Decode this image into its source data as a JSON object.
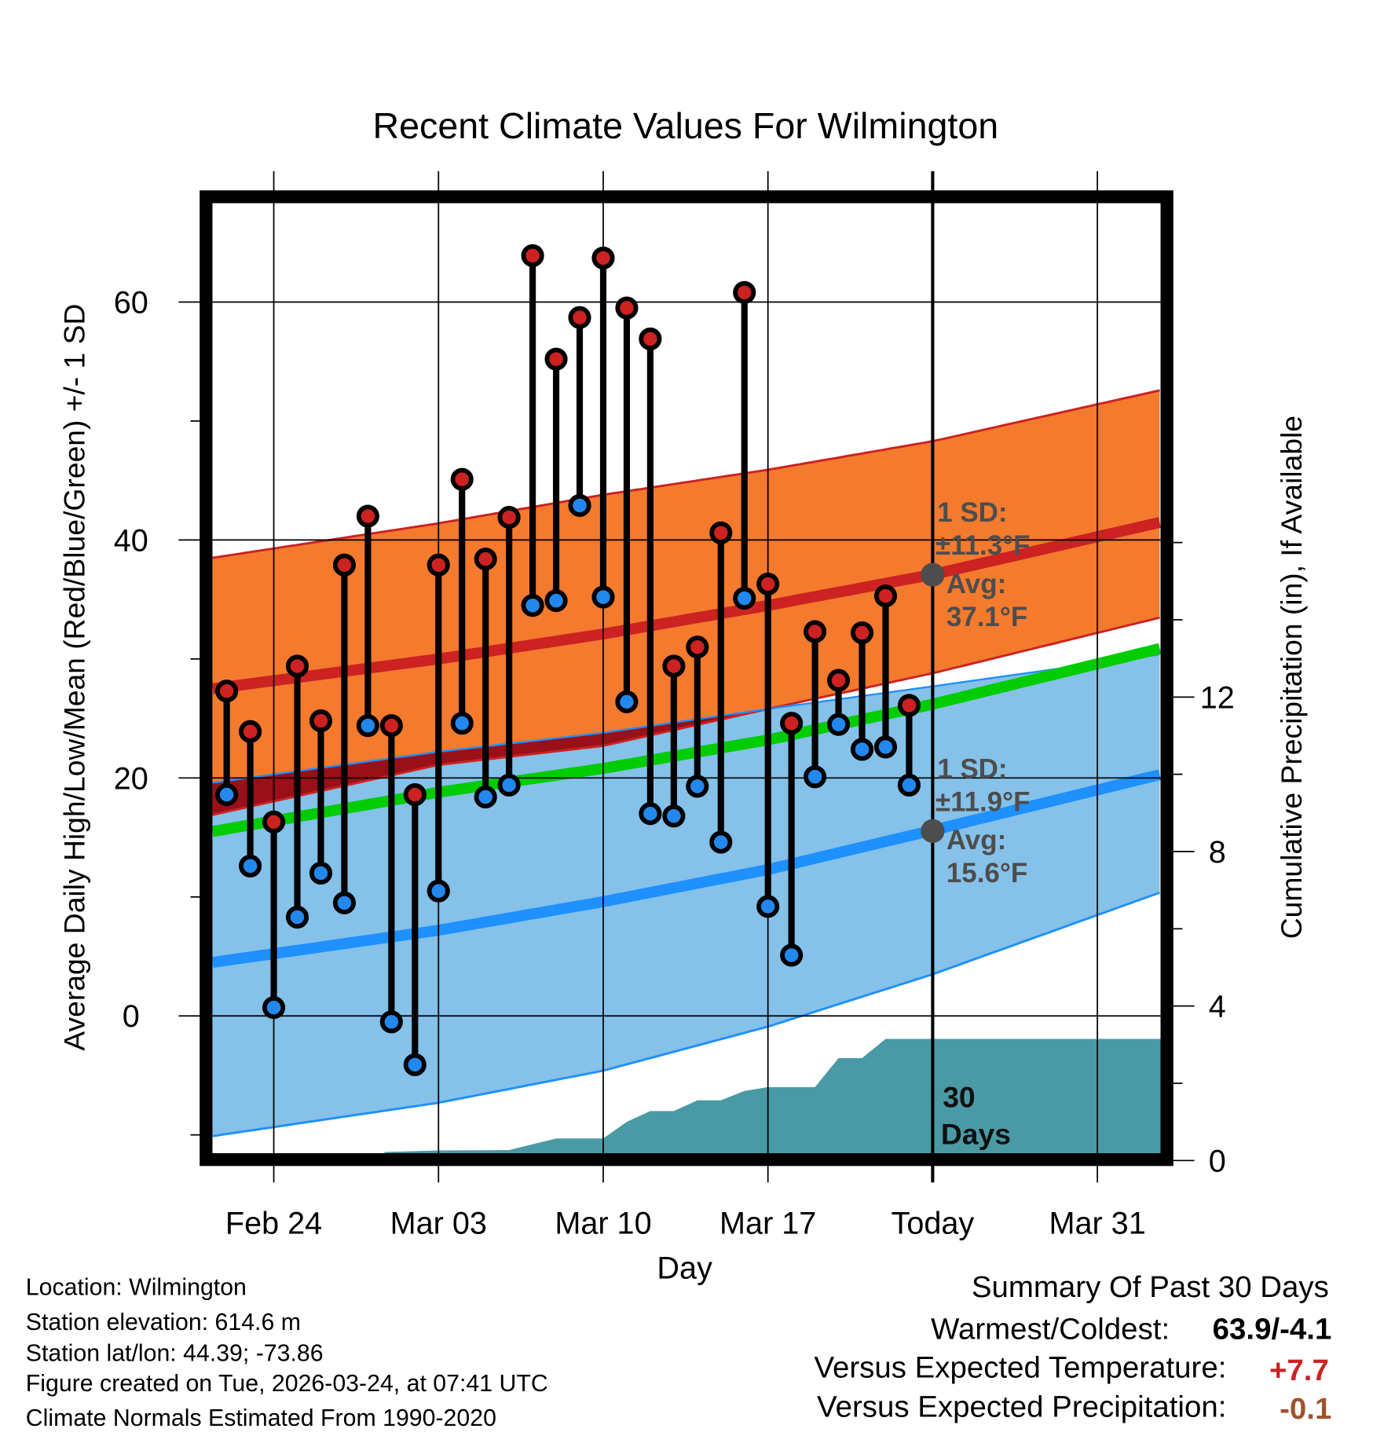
{
  "chart_data": {
    "type": "line",
    "title": "Recent Climate Values For Wilmington",
    "xlabel": "Day",
    "ylabel": "Average Daily High/Low/Mean (Red/Blue/Green) +/- 1 SD",
    "y2label": "Cumulative Precipitation (in), If Available",
    "ylim": [
      -11.5,
      68.3
    ],
    "y2lim": [
      0,
      18.9
    ],
    "grid": true,
    "x_origin": "Feb 24",
    "xlim_days": [
      -2.6,
      37.7
    ],
    "x_ticks": [
      {
        "day": 0,
        "label": "Feb 24"
      },
      {
        "day": 7,
        "label": "Mar 03"
      },
      {
        "day": 14,
        "label": "Mar 10"
      },
      {
        "day": 21,
        "label": "Mar 17"
      },
      {
        "day": 28,
        "label": "Today"
      },
      {
        "day": 35,
        "label": "Mar 31"
      }
    ],
    "y_ticks": [
      "0",
      "20",
      "40",
      "60"
    ],
    "y2_ticks": [
      "0",
      "4",
      "8",
      "12"
    ],
    "observed": {
      "days": [
        -2,
        -1,
        0,
        1,
        2,
        3,
        4,
        5,
        6,
        7,
        8,
        9,
        10,
        11,
        12,
        13,
        14,
        15,
        16,
        17,
        18,
        19,
        20,
        21,
        22,
        23,
        24,
        25,
        26,
        27
      ],
      "high": [
        27.3,
        23.9,
        16.3,
        29.4,
        24.8,
        37.9,
        42.0,
        24.4,
        18.6,
        37.9,
        45.1,
        38.4,
        41.9,
        63.9,
        55.2,
        58.7,
        63.7,
        59.5,
        56.9,
        29.4,
        31.0,
        40.6,
        60.8,
        36.3,
        24.6,
        32.3,
        28.2,
        32.2,
        35.3,
        26.1
      ],
      "low": [
        18.6,
        12.6,
        0.7,
        8.3,
        12.0,
        9.5,
        24.4,
        -0.5,
        -4.1,
        10.5,
        24.6,
        18.4,
        19.4,
        34.5,
        34.9,
        42.9,
        35.2,
        26.4,
        17.0,
        16.8,
        19.3,
        14.6,
        35.1,
        9.2,
        5.1,
        20.1,
        24.5,
        22.4,
        22.6,
        19.4
      ]
    },
    "normals": {
      "days": [
        -2.6,
        7,
        14,
        21,
        28,
        37.7
      ],
      "high_plus_sd": [
        38.5,
        41.4,
        43.8,
        45.9,
        48.3,
        52.6
      ],
      "avg_high": [
        27.5,
        30.0,
        32.1,
        34.5,
        37.1,
        41.5
      ],
      "high_minus_sd": [
        16.9,
        21.1,
        22.7,
        25.8,
        28.8,
        33.5
      ],
      "low_plus_sd": [
        19.6,
        22.2,
        23.8,
        25.8,
        27.7,
        30.4
      ],
      "mean": [
        15.5,
        18.8,
        20.8,
        23.2,
        26.2,
        30.9
      ],
      "avg_low": [
        4.5,
        7.2,
        9.6,
        12.3,
        15.6,
        20.3
      ],
      "low_minus_sd": [
        -10.1,
        -7.3,
        -4.6,
        -0.9,
        3.5,
        10.4
      ]
    },
    "precip_cumulative": {
      "days": [
        4.7,
        7,
        10,
        12,
        14,
        15,
        16,
        17,
        18,
        19,
        20,
        21,
        23,
        24,
        25,
        26,
        37.7
      ],
      "inches": [
        0.22,
        0.26,
        0.27,
        0.57,
        0.57,
        1.0,
        1.28,
        1.28,
        1.56,
        1.56,
        1.8,
        1.9,
        1.9,
        2.65,
        2.65,
        3.15,
        3.15
      ]
    },
    "annotations": {
      "high_sd_label": "1 SD:",
      "high_sd_value": "±11.3°F",
      "high_avg_label": "Avg:",
      "high_avg_value": "37.1°F",
      "low_sd_label": "1 SD:",
      "low_sd_value": "±11.9°F",
      "low_avg_label": "Avg:",
      "low_avg_value": "15.6°F",
      "days_label_1": "30",
      "days_label_2": "Days"
    },
    "colors": {
      "high_band": "#f47a2e",
      "low_band": "#85c1e8",
      "overlap": "#9a1018",
      "high_line": "#cc2222",
      "low_line": "#1e90ff",
      "mean_line": "#00cc00",
      "precip": "#4a9aa5",
      "high_point": "#cc2222",
      "low_point": "#2288ee",
      "annotation": "#4d4d4d"
    }
  },
  "info": {
    "location": "Location: Wilmington",
    "elevation": "Station elevation: 614.6 m",
    "latlon": "Station lat/lon: 44.39; -73.86",
    "created": "Figure created on Tue, 2026-03-24, at 07:41 UTC",
    "normals": "Climate Normals Estimated From 1990-2020"
  },
  "summary": {
    "title": "Summary Of Past 30 Days",
    "warm_cold_label": "Warmest/Coldest:",
    "warm_cold_value": "63.9/-4.1",
    "temp_label": "Versus Expected Temperature:",
    "temp_value": "+7.7",
    "temp_color": "#cc2222",
    "precip_label": "Versus Expected Precipitation:",
    "precip_value": "-0.1",
    "precip_color": "#a0522d"
  }
}
